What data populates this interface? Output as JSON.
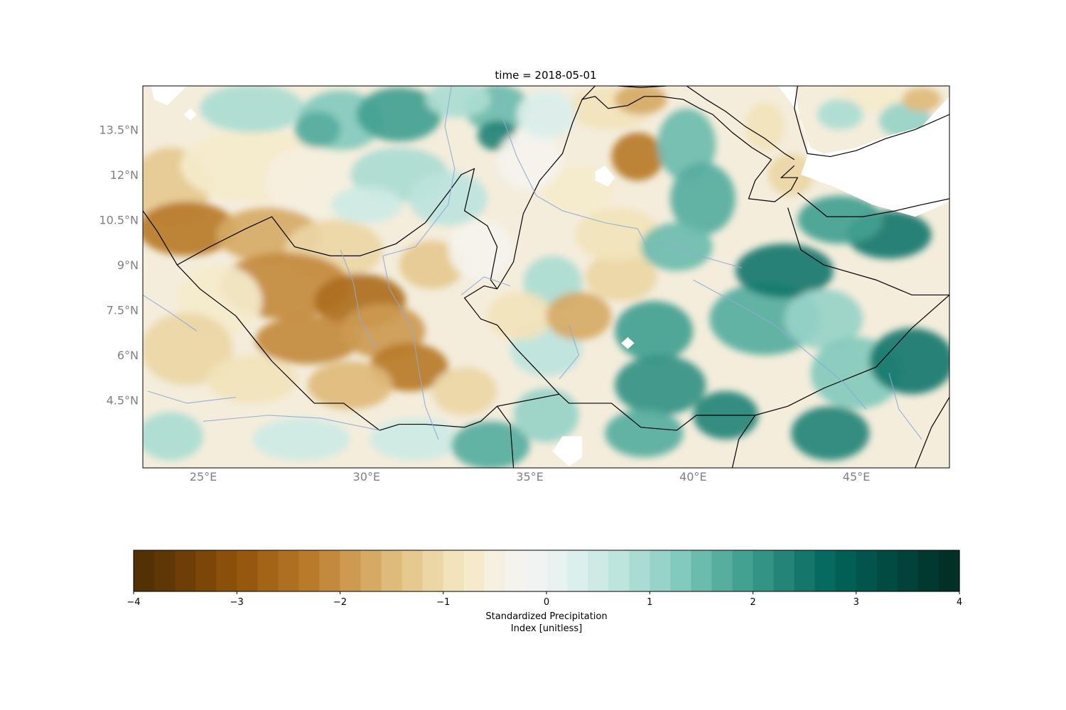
{
  "map": {
    "title": "time = 2018-05-01",
    "projection": "PlateCarree",
    "extent": {
      "lon": [
        23.15,
        47.85
      ],
      "lat": [
        2.25,
        14.95
      ]
    },
    "lon_ticks": [
      {
        "value": 25,
        "label": "25°E"
      },
      {
        "value": 30,
        "label": "30°E"
      },
      {
        "value": 35,
        "label": "35°E"
      },
      {
        "value": 40,
        "label": "40°E"
      },
      {
        "value": 45,
        "label": "45°E"
      }
    ],
    "lat_ticks": [
      {
        "value": 13.5,
        "label": "13.5°N"
      },
      {
        "value": 12,
        "label": "12°N"
      },
      {
        "value": 10.5,
        "label": "10.5°N"
      },
      {
        "value": 9,
        "label": "9°N"
      },
      {
        "value": 7.5,
        "label": "7.5°N"
      },
      {
        "value": 6,
        "label": "6°N"
      },
      {
        "value": 4.5,
        "label": "4.5°N"
      }
    ],
    "tick_color": "#808080",
    "border_color": "#000000",
    "river_color": "#8eaad6",
    "dry_color": "#8c510a",
    "wet_color": "#01665e",
    "no_data_color": "#ffffff"
  },
  "colorbar": {
    "label_line1": "Standardized Precipitation",
    "label_line2": "Index [unitless]",
    "min": -4,
    "max": 4,
    "levels": 40,
    "colormap": "BrBG",
    "ticks": [
      {
        "value": -4,
        "label": "−4"
      },
      {
        "value": -3,
        "label": "−3"
      },
      {
        "value": -2,
        "label": "−2"
      },
      {
        "value": -1,
        "label": "−1"
      },
      {
        "value": 0,
        "label": "0"
      },
      {
        "value": 1,
        "label": "1"
      },
      {
        "value": 2,
        "label": "2"
      },
      {
        "value": 3,
        "label": "3"
      },
      {
        "value": 4,
        "label": "4"
      }
    ],
    "colors": [
      "#543005",
      "#5f3606",
      "#6d3e07",
      "#7c4609",
      "#8a4f0a",
      "#96580f",
      "#a36417",
      "#ae6f20",
      "#b97b29",
      "#c38a3d",
      "#cc9a51",
      "#d6aa65",
      "#dfbb7b",
      "#e6c98f",
      "#ecd6a5",
      "#f2e3ba",
      "#f5ebcc",
      "#f5f0e0",
      "#f5f3ee",
      "#f1f3f2",
      "#e8f3f1",
      "#dbefec",
      "#cdeae5",
      "#bde4dd",
      "#abdcd3",
      "#97d3c8",
      "#82cabd",
      "#6cbcae",
      "#57ae9f",
      "#43a191",
      "#339384",
      "#248478",
      "#15776c",
      "#066a60",
      "#025f56",
      "#02554c",
      "#014b43",
      "#01423a",
      "#013931",
      "#003026"
    ]
  }
}
